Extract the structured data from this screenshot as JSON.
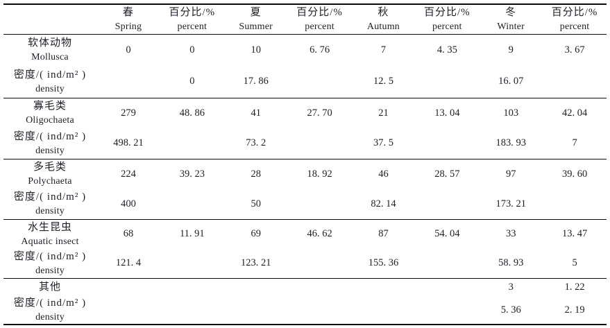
{
  "table": {
    "header": {
      "corner": "",
      "columns": [
        {
          "zh": "春",
          "en": "Spring"
        },
        {
          "zh": "百分比/%",
          "en": "percent"
        },
        {
          "zh": "夏",
          "en": "Summer"
        },
        {
          "zh": "百分比/%",
          "en": "percent"
        },
        {
          "zh": "秋",
          "en": "Autumn"
        },
        {
          "zh": "百分比/%",
          "en": "percent"
        },
        {
          "zh": "冬",
          "en": "Winter"
        },
        {
          "zh": "百分比/%",
          "en": "percent"
        }
      ]
    },
    "density_label": {
      "zh": "密度/( ind/m² )",
      "en": "density"
    },
    "sections": [
      {
        "label": {
          "zh": "软体动物",
          "en": "Mollusca"
        },
        "counts": [
          "0",
          "0",
          "10",
          "6. 76",
          "7",
          "4. 35",
          "9",
          "3. 67"
        ],
        "densities": [
          "",
          "0",
          "17. 86",
          "",
          "12. 5",
          "",
          "16. 07",
          ""
        ]
      },
      {
        "label": {
          "zh": "寡毛类",
          "en": "Oligochaeta"
        },
        "counts": [
          "279",
          "48. 86",
          "41",
          "27. 70",
          "21",
          "13. 04",
          "103",
          "42. 04"
        ],
        "densities": [
          "498. 21",
          "",
          "73. 2",
          "",
          "37. 5",
          "",
          "183. 93",
          "7"
        ]
      },
      {
        "label": {
          "zh": "多毛类",
          "en": "Polychaeta"
        },
        "counts": [
          "224",
          "39. 23",
          "28",
          "18. 92",
          "46",
          "28. 57",
          "97",
          "39. 60"
        ],
        "densities": [
          "400",
          "",
          "50",
          "",
          "82. 14",
          "",
          "173. 21",
          ""
        ]
      },
      {
        "label": {
          "zh": "水生昆虫",
          "en": "Aquatic insect"
        },
        "counts": [
          "68",
          "11. 91",
          "69",
          "46. 62",
          "87",
          "54. 04",
          "33",
          "13. 47"
        ],
        "densities": [
          "121. 4",
          "",
          "123. 21",
          "",
          "155. 36",
          "",
          "58. 93",
          "5"
        ]
      },
      {
        "label": {
          "zh": "其他",
          "en": ""
        },
        "counts": [
          "",
          "",
          "",
          "",
          "",
          "",
          "3",
          "1. 22"
        ],
        "densities": [
          "",
          "",
          "",
          "",
          "",
          "",
          "5. 36",
          "2. 19"
        ]
      }
    ]
  }
}
